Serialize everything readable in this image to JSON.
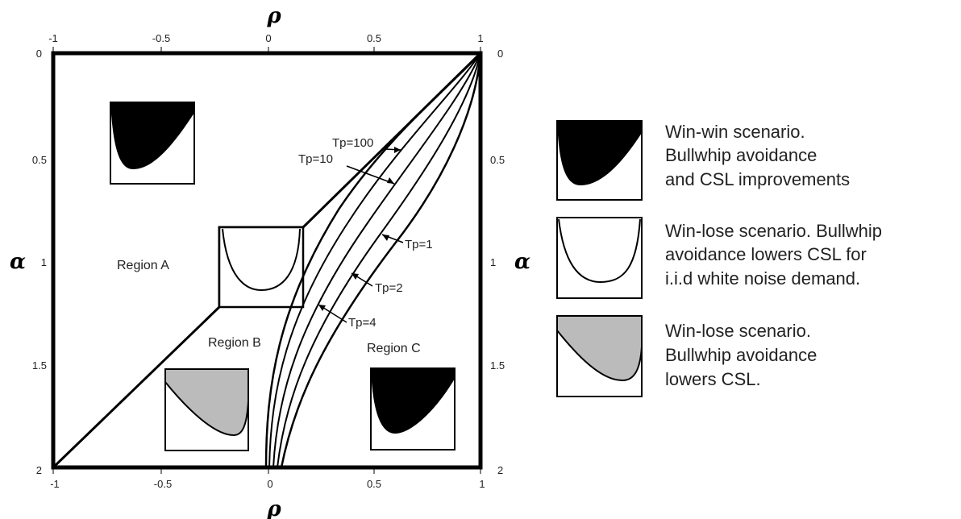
{
  "axes": {
    "x_symbol": "ρ",
    "y_symbol": "α",
    "x_ticks": [
      "-1",
      "-0.5",
      "0",
      "0.5",
      "1"
    ],
    "y_ticks": [
      "0",
      "0.5",
      "1",
      "1.5",
      "2"
    ]
  },
  "regions": {
    "a": "Region A",
    "b": "Region B",
    "c": "Region C"
  },
  "curves": [
    "Tp=100",
    "Tp=10",
    "Tp=1",
    "Tp=2",
    "Tp=4"
  ],
  "legend": [
    {
      "fill": "#000000",
      "lines": [
        "Win-win scenario.",
        "Bullwhip avoidance",
        "and CSL improvements"
      ]
    },
    {
      "fill": "#ffffff",
      "lines": [
        "Win-lose scenario. Bullwhip",
        "avoidance lowers CSL for",
        " i.i.d white noise demand."
      ]
    },
    {
      "fill": "#bbbbbb",
      "lines": [
        "Win-lose scenario.",
        "Bullwhip avoidance",
        "lowers CSL."
      ]
    }
  ],
  "colors": {
    "dark": "#000000",
    "gray": "#bbbbbb"
  }
}
